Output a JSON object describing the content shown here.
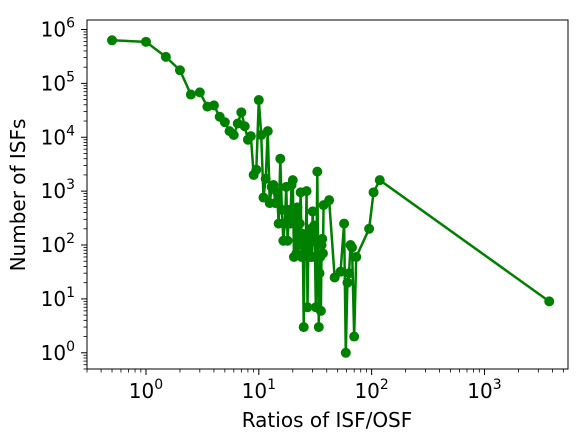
{
  "chart_data": {
    "type": "line",
    "title": "",
    "xlabel": "Ratios of ISF/OSF",
    "ylabel": "Number of ISFs",
    "xscale": "log",
    "yscale": "log",
    "xlim": [
      0.3,
      5500
    ],
    "ylim": [
      0.5,
      1500000
    ],
    "grid": false,
    "legend": "none",
    "x_ticks": [
      {
        "value": 1,
        "base": "10",
        "exp": "0"
      },
      {
        "value": 10,
        "base": "10",
        "exp": "1"
      },
      {
        "value": 100,
        "base": "10",
        "exp": "2"
      },
      {
        "value": 1000,
        "base": "10",
        "exp": "3"
      }
    ],
    "y_ticks": [
      {
        "value": 1,
        "base": "10",
        "exp": "0"
      },
      {
        "value": 10,
        "base": "10",
        "exp": "1"
      },
      {
        "value": 100,
        "base": "10",
        "exp": "2"
      },
      {
        "value": 1000,
        "base": "10",
        "exp": "3"
      },
      {
        "value": 10000,
        "base": "10",
        "exp": "4"
      },
      {
        "value": 100000,
        "base": "10",
        "exp": "5"
      },
      {
        "value": 1000000,
        "base": "10",
        "exp": "6"
      }
    ],
    "series": [
      {
        "color": "#008000",
        "marker": "circle",
        "points": [
          [
            0.5,
            630000
          ],
          [
            1.0,
            590000
          ],
          [
            1.5,
            310000
          ],
          [
            2.0,
            175000
          ],
          [
            2.5,
            62000
          ],
          [
            3.0,
            68000
          ],
          [
            3.5,
            37000
          ],
          [
            4.0,
            39000
          ],
          [
            4.5,
            24000
          ],
          [
            5.0,
            19000
          ],
          [
            5.5,
            13000
          ],
          [
            6.0,
            11000
          ],
          [
            6.5,
            18000
          ],
          [
            7.0,
            29000
          ],
          [
            7.5,
            16000
          ],
          [
            8.0,
            9000
          ],
          [
            8.5,
            10500
          ],
          [
            9.0,
            2000
          ],
          [
            9.5,
            2500
          ],
          [
            10.0,
            49000
          ],
          [
            10.5,
            11000
          ],
          [
            11.0,
            760
          ],
          [
            11.5,
            1700
          ],
          [
            12.0,
            13000
          ],
          [
            12.5,
            600
          ],
          [
            13.0,
            1200
          ],
          [
            13.5,
            1300
          ],
          [
            14.0,
            600
          ],
          [
            14.5,
            960
          ],
          [
            15.0,
            250
          ],
          [
            15.5,
            4000
          ],
          [
            16.0,
            450
          ],
          [
            16.5,
            120
          ],
          [
            17.0,
            250
          ],
          [
            17.5,
            1200
          ],
          [
            18.0,
            120
          ],
          [
            18.5,
            450
          ],
          [
            19.0,
            250
          ],
          [
            19.5,
            1300
          ],
          [
            20.0,
            1600
          ],
          [
            20.5,
            60
          ],
          [
            21.0,
            350
          ],
          [
            21.5,
            70
          ],
          [
            22.0,
            500
          ],
          [
            22.5,
            100
          ],
          [
            23.0,
            250
          ],
          [
            23.5,
            950
          ],
          [
            24.0,
            60
          ],
          [
            24.5,
            160
          ],
          [
            25.0,
            3
          ],
          [
            25.5,
            120
          ],
          [
            26.0,
            80
          ],
          [
            26.5,
            1000
          ],
          [
            27.0,
            7
          ],
          [
            27.5,
            110
          ],
          [
            28.0,
            60
          ],
          [
            28.5,
            150
          ],
          [
            29.0,
            200
          ],
          [
            29.5,
            60
          ],
          [
            30.0,
            420
          ],
          [
            30.5,
            120
          ],
          [
            31.0,
            230
          ],
          [
            31.5,
            60
          ],
          [
            32.0,
            7
          ],
          [
            32.5,
            120
          ],
          [
            33.0,
            2300
          ],
          [
            33.5,
            60
          ],
          [
            34.0,
            3
          ],
          [
            34.5,
            30
          ],
          [
            35.0,
            60
          ],
          [
            35.5,
            6
          ],
          [
            36.0,
            100
          ],
          [
            36.5,
            130
          ],
          [
            37.0,
            70
          ],
          [
            37.5,
            550
          ],
          [
            42.0,
            680
          ],
          [
            47.0,
            25
          ],
          [
            53.0,
            32
          ],
          [
            57.0,
            250
          ],
          [
            59.0,
            1
          ],
          [
            61.0,
            20
          ],
          [
            63.0,
            30
          ],
          [
            65.0,
            100
          ],
          [
            67.0,
            90
          ],
          [
            70.0,
            2
          ],
          [
            73.0,
            60
          ],
          [
            95.0,
            200
          ],
          [
            104.0,
            950
          ],
          [
            118.0,
            1600
          ],
          [
            3750.0,
            9
          ]
        ]
      }
    ]
  }
}
